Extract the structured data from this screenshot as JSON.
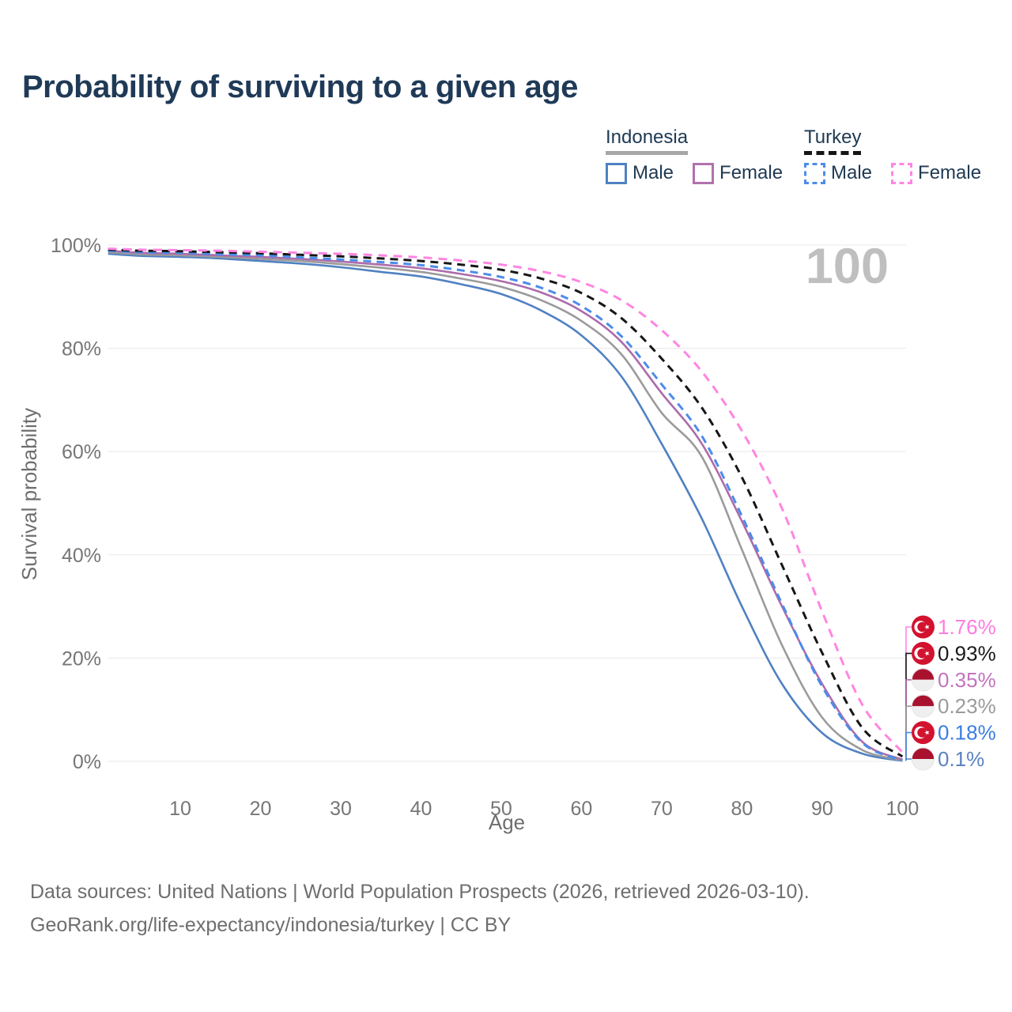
{
  "title": "Probability of surviving to a given age",
  "legend": {
    "groups": [
      {
        "country": "Indonesia",
        "underline_color": "#a7a7a7",
        "underline_style": "solid",
        "items": [
          {
            "label": "Male",
            "color": "#5081c2",
            "dashed": false
          },
          {
            "label": "Female",
            "color": "#b172ad",
            "dashed": false
          }
        ]
      },
      {
        "country": "Turkey",
        "underline_color": "#161616",
        "underline_style": "dashed",
        "items": [
          {
            "label": "Male",
            "color": "#4b8ce9",
            "dashed": true
          },
          {
            "label": "Female",
            "color": "#ff85e2",
            "dashed": true
          }
        ]
      }
    ]
  },
  "chart_data": {
    "type": "line",
    "title": "Probability of surviving to a given age",
    "xlabel": "Age",
    "ylabel": "Survival probability",
    "watermark": "100",
    "xlim": [
      1,
      100
    ],
    "ylim": [
      0,
      100
    ],
    "grid": true,
    "legend_position": "top-right",
    "x_ticks": [
      {
        "value": 10,
        "label": "10"
      },
      {
        "value": 20,
        "label": "20"
      },
      {
        "value": 30,
        "label": "30"
      },
      {
        "value": 40,
        "label": "40"
      },
      {
        "value": 50,
        "label": "50"
      },
      {
        "value": 60,
        "label": "60"
      },
      {
        "value": 70,
        "label": "70"
      },
      {
        "value": 80,
        "label": "80"
      },
      {
        "value": 90,
        "label": "90"
      },
      {
        "value": 100,
        "label": "100"
      }
    ],
    "y_ticks": [
      {
        "value": 0,
        "label": "0%"
      },
      {
        "value": 20,
        "label": "20%"
      },
      {
        "value": 40,
        "label": "40%"
      },
      {
        "value": 60,
        "label": "60%"
      },
      {
        "value": 80,
        "label": "80%"
      },
      {
        "value": 100,
        "label": "100%"
      }
    ],
    "ages": [
      1,
      5,
      10,
      15,
      20,
      25,
      30,
      35,
      40,
      45,
      50,
      55,
      60,
      65,
      70,
      75,
      80,
      85,
      90,
      95,
      100
    ],
    "flags": {
      "turkey": {
        "red": "#d2122e",
        "fg": "#ffffff"
      },
      "indonesia": {
        "red": "#a9122f",
        "white": "#efefef"
      }
    },
    "series": [
      {
        "name": "Indonesia Male",
        "country": "Indonesia",
        "sex": "male",
        "flag": "indonesia",
        "color": "#5081c2",
        "label_color": "#5b82c0",
        "dashed": false,
        "end_label": "0.1%",
        "values": [
          98.3,
          97.9,
          97.7,
          97.4,
          96.9,
          96.4,
          95.7,
          94.8,
          93.9,
          92.4,
          90.5,
          87.3,
          82.5,
          74.5,
          61.5,
          47.0,
          30.0,
          15.0,
          5.5,
          1.5,
          0.1
        ]
      },
      {
        "name": "Indonesia Total",
        "country": "Indonesia",
        "sex": "both",
        "flag": "indonesia",
        "color": "#9b9b9b",
        "label_color": "#9b9b9b",
        "dashed": false,
        "end_label": "0.23%",
        "values": [
          98.6,
          98.2,
          98.0,
          97.7,
          97.3,
          96.9,
          96.3,
          95.6,
          94.8,
          93.5,
          91.9,
          89.3,
          85.3,
          78.8,
          67.5,
          59.0,
          41.0,
          22.5,
          8.5,
          2.2,
          0.23
        ]
      },
      {
        "name": "Indonesia Female",
        "country": "Indonesia",
        "sex": "female",
        "flag": "indonesia",
        "color": "#ad6caa",
        "label_color": "#c273be",
        "dashed": false,
        "end_label": "0.35%",
        "values": [
          98.9,
          98.5,
          98.3,
          98.0,
          97.7,
          97.3,
          96.8,
          96.2,
          95.5,
          94.4,
          93.0,
          90.8,
          87.2,
          81.2,
          71.3,
          61.5,
          46.5,
          30.0,
          15.0,
          3.8,
          0.35
        ]
      },
      {
        "name": "Turkey Male",
        "country": "Turkey",
        "sex": "male",
        "flag": "turkey",
        "color": "#4b8ce9",
        "label_color": "#3b7de2",
        "dashed": true,
        "end_label": "0.18%",
        "values": [
          98.9,
          98.6,
          98.5,
          98.2,
          98.0,
          97.6,
          97.2,
          96.7,
          96.1,
          95.1,
          93.8,
          91.7,
          88.2,
          82.3,
          73.0,
          63.0,
          47.5,
          30.5,
          14.5,
          3.6,
          0.18
        ]
      },
      {
        "name": "Turkey Total",
        "country": "Turkey",
        "sex": "both",
        "flag": "turkey",
        "color": "#161616",
        "label_color": "#1a1a1a",
        "dashed": true,
        "end_label": "0.93%",
        "values": [
          99.1,
          98.9,
          98.8,
          98.6,
          98.4,
          98.1,
          97.8,
          97.4,
          96.9,
          96.2,
          95.2,
          93.5,
          90.7,
          85.8,
          78.0,
          68.5,
          55.0,
          38.0,
          21.0,
          6.5,
          0.93
        ]
      },
      {
        "name": "Turkey Female",
        "country": "Turkey",
        "sex": "female",
        "flag": "turkey",
        "color": "#ff85e2",
        "label_color": "#ff7ce0",
        "dashed": true,
        "end_label": "1.76%",
        "values": [
          99.3,
          99.1,
          99.0,
          98.9,
          98.7,
          98.5,
          98.3,
          98.0,
          97.6,
          97.0,
          96.2,
          94.9,
          92.8,
          89.3,
          83.5,
          75.5,
          64.0,
          49.0,
          29.0,
          11.0,
          1.76
        ]
      }
    ]
  },
  "footer": {
    "line1": "Data sources: United Nations | World Population Prospects (2026, retrieved 2026-03-10).",
    "line2": "GeoRank.org/life-expectancy/indonesia/turkey | CC BY"
  }
}
